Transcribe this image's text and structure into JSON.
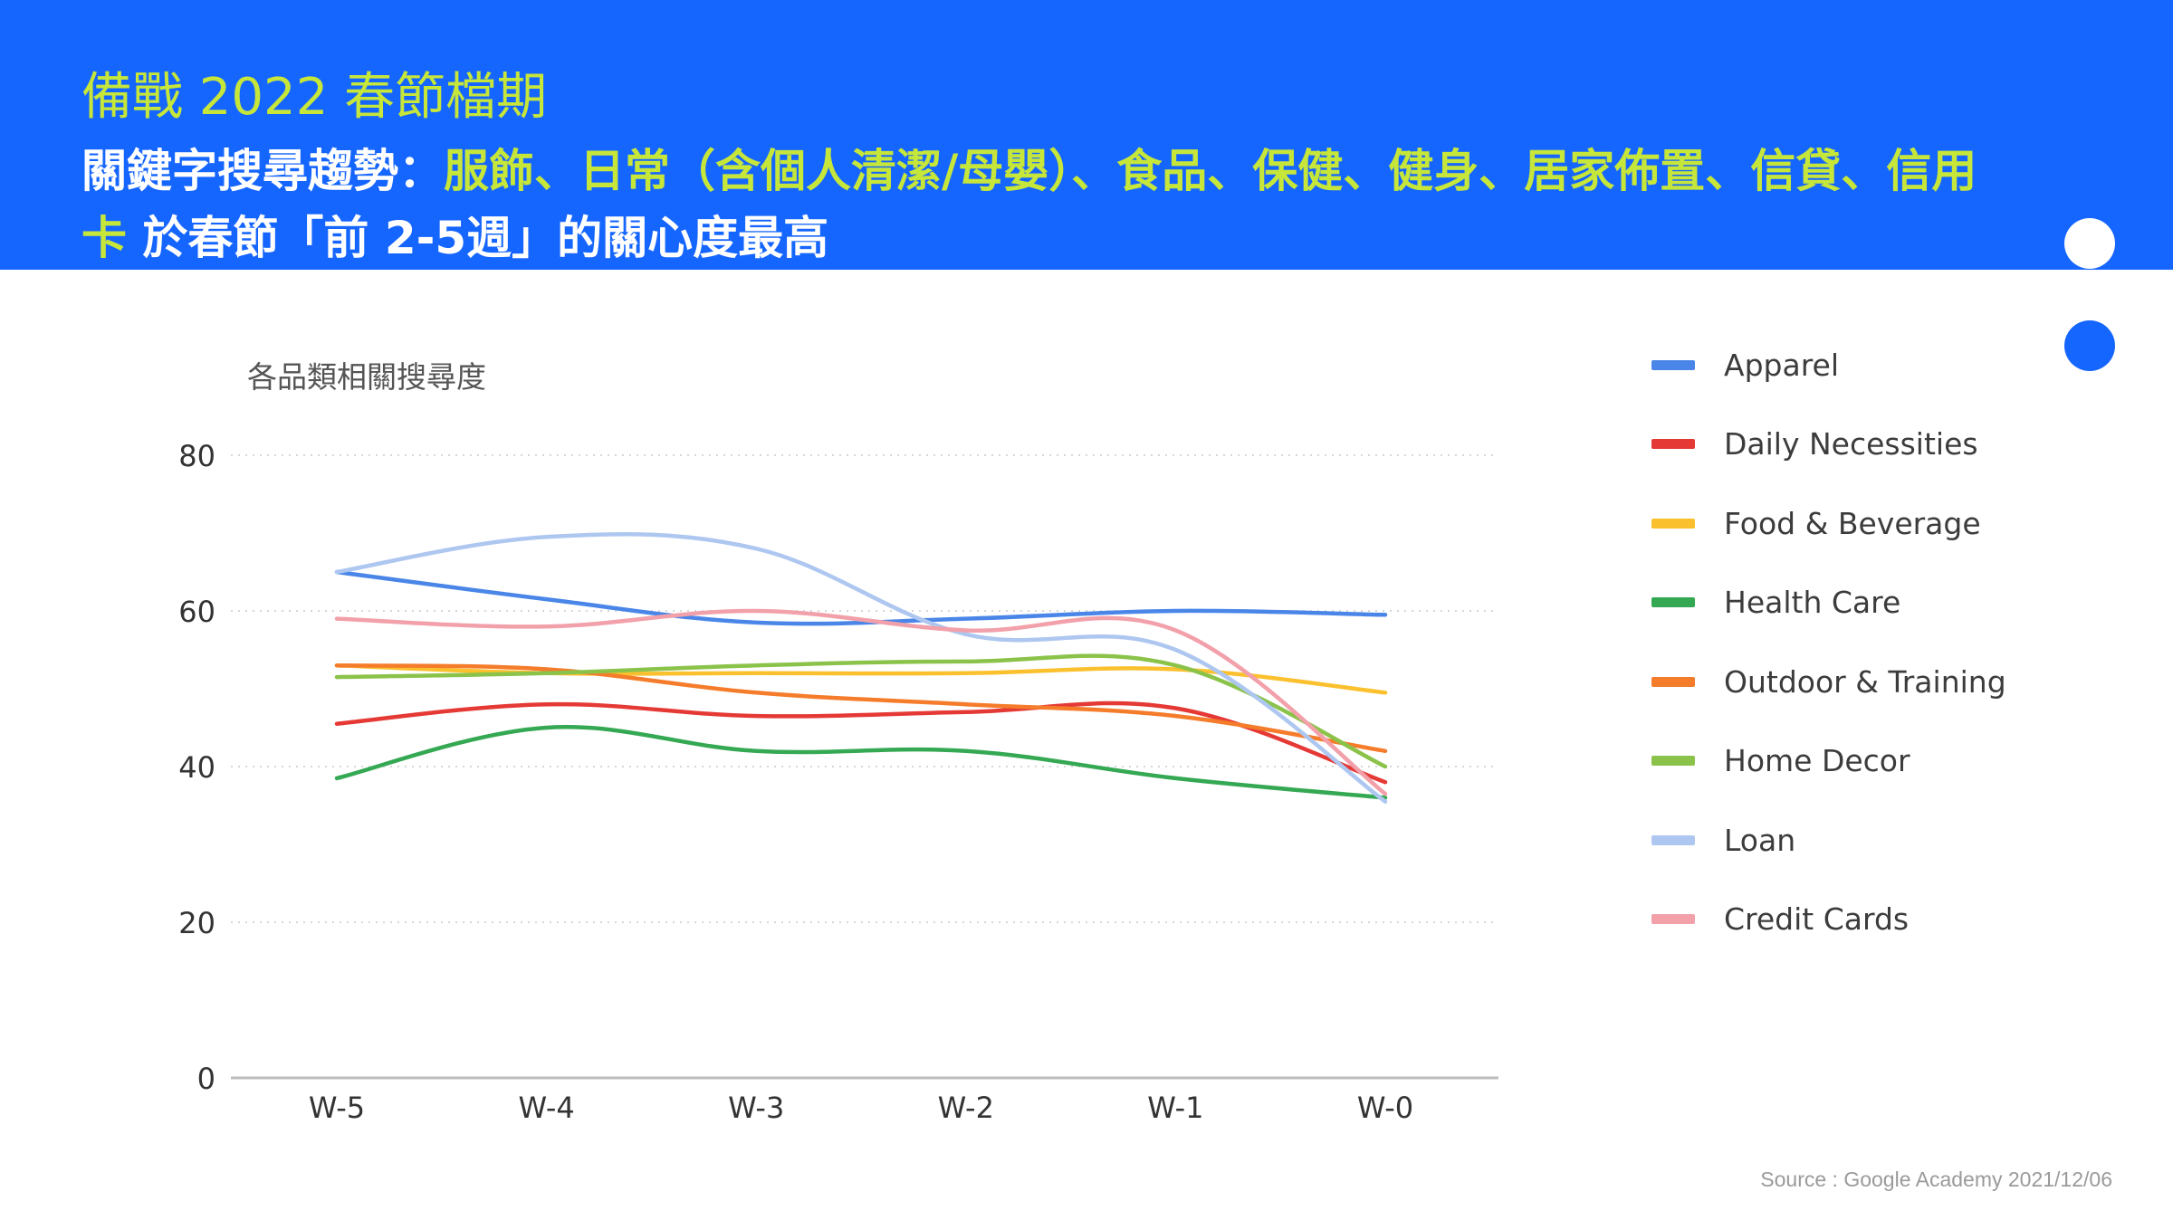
{
  "header": {
    "subtitle": "備戰 2022 春節檔期",
    "headline_parts": [
      {
        "text": "關鍵字搜尋趨勢：",
        "highlight": false
      },
      {
        "text": "服飾、日常（含個人清潔/母嬰）、食品、保健、健身、居家佈置、信貸、信用卡",
        "highlight": true
      },
      {
        "text": " 於春節「前 2-5週」的關心度最高",
        "highlight": false
      }
    ]
  },
  "colors": {
    "header_bg": "#1565ff",
    "highlight": "#c6e63a"
  },
  "chart_data": {
    "type": "line",
    "title": "各品類相關搜尋度",
    "xlabel": "",
    "ylabel": "",
    "categories": [
      "W-5",
      "W-4",
      "W-3",
      "W-2",
      "W-1",
      "W-0"
    ],
    "ylim": [
      0,
      80
    ],
    "yticks": [
      0,
      20,
      40,
      60,
      80
    ],
    "grid": true,
    "legend_position": "right",
    "series": [
      {
        "name": "Apparel",
        "color": "#4a86e8",
        "values": [
          65,
          61.5,
          58.5,
          59,
          60,
          59.5
        ]
      },
      {
        "name": "Daily Necessities",
        "color": "#e53935",
        "values": [
          45.5,
          48,
          46.5,
          47,
          47.5,
          38
        ]
      },
      {
        "name": "Food & Beverage",
        "color": "#fbc02d",
        "values": [
          53,
          52,
          52,
          52,
          52.5,
          49.5
        ]
      },
      {
        "name": "Health Care",
        "color": "#34a853",
        "values": [
          38.5,
          45,
          42,
          42,
          38.5,
          36
        ]
      },
      {
        "name": "Outdoor & Training",
        "color": "#f57c2b",
        "values": [
          53,
          52.5,
          49.5,
          48,
          46.5,
          42
        ]
      },
      {
        "name": "Home Decor",
        "color": "#8bc34a",
        "values": [
          51.5,
          52,
          53,
          53.5,
          53,
          40
        ]
      },
      {
        "name": "Loan",
        "color": "#aec7f0",
        "values": [
          65,
          69.5,
          68,
          57,
          55,
          35.5
        ]
      },
      {
        "name": "Credit Cards",
        "color": "#f2a0aa",
        "values": [
          59,
          58,
          60,
          57.5,
          57.5,
          36.5
        ]
      }
    ]
  },
  "source": "Source : Google Academy 2021/12/06"
}
